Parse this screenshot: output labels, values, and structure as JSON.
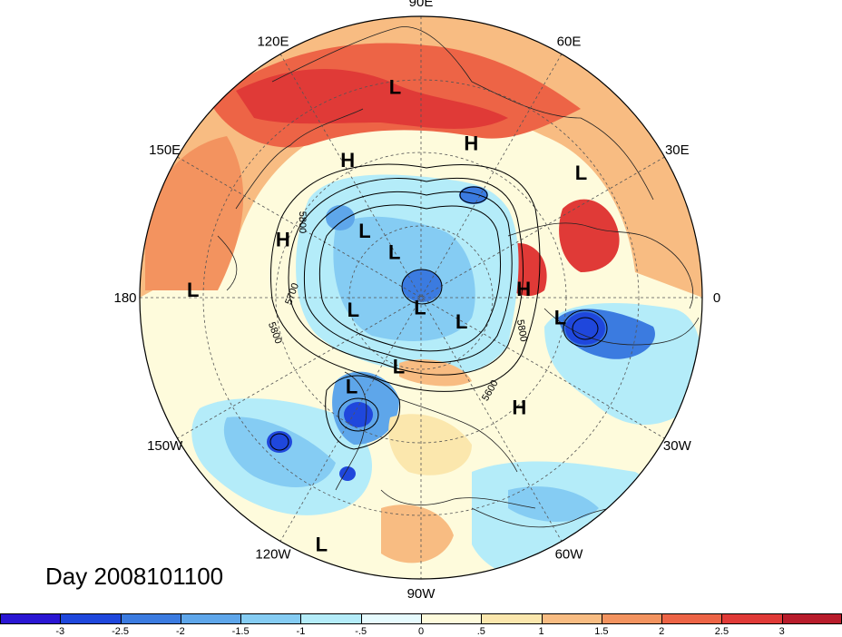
{
  "title": "Day 2008101100",
  "longitude_labels": [
    {
      "text": "90E",
      "lon": 90
    },
    {
      "text": "60E",
      "lon": 60
    },
    {
      "text": "30E",
      "lon": 30
    },
    {
      "text": "0",
      "lon": 0
    },
    {
      "text": "30W",
      "lon": -30
    },
    {
      "text": "60W",
      "lon": -60
    },
    {
      "text": "90W",
      "lon": -90
    },
    {
      "text": "120W",
      "lon": -120
    },
    {
      "text": "150W",
      "lon": -150
    },
    {
      "text": "180",
      "lon": 180
    },
    {
      "text": "150E",
      "lon": 150
    },
    {
      "text": "120E",
      "lon": 120
    }
  ],
  "contour_labels": [
    "5800",
    "5700",
    "5800",
    "5800",
    "5600"
  ],
  "pressure_systems": [
    {
      "type": "L",
      "lon": 97,
      "lat": 22
    },
    {
      "type": "H",
      "lon": 118,
      "lat": 40
    },
    {
      "type": "H",
      "lon": 72,
      "lat": 38
    },
    {
      "type": "L",
      "lon": 38,
      "lat": 25
    },
    {
      "type": "L",
      "lon": 130,
      "lat": 62
    },
    {
      "type": "L",
      "lon": 120,
      "lat": 73
    },
    {
      "type": "H",
      "lon": 157,
      "lat": 42
    },
    {
      "type": "L",
      "lon": 178,
      "lat": 17
    },
    {
      "type": "L",
      "lon": -96,
      "lat": 87
    },
    {
      "type": "L",
      "lon": -170,
      "lat": 68
    },
    {
      "type": "L",
      "lon": -30,
      "lat": 75
    },
    {
      "type": "H",
      "lon": 5,
      "lat": 57
    },
    {
      "type": "L",
      "lon": -8,
      "lat": 45
    },
    {
      "type": "L",
      "lon": -108,
      "lat": 67
    },
    {
      "type": "H",
      "lon": -48,
      "lat": 43
    },
    {
      "type": "L",
      "lon": -128,
      "lat": 54
    },
    {
      "type": "L",
      "lon": -112,
      "lat": 5
    }
  ],
  "colorbar": {
    "colors": [
      "#2a16d3",
      "#1f47dc",
      "#3b7be0",
      "#5ea6ea",
      "#85ccf3",
      "#b4ecf9",
      "#e6fbfe",
      "#fefbdc",
      "#fbe7ad",
      "#f8bc82",
      "#f3935f",
      "#ed6446",
      "#e03a37",
      "#b81c2b"
    ],
    "ticks": [
      "-3",
      "-2.5",
      "-2",
      "-1.5",
      "-1",
      "-.5",
      "0",
      ".5",
      "1",
      "1.5",
      "2",
      "2.5",
      "3"
    ]
  },
  "colors": {
    "ocean_neutral": "#fefbdc",
    "warm": "#f3935f",
    "hot": "#e03a37",
    "cold": "#3b7be0",
    "very_cold": "#2a16d3"
  }
}
